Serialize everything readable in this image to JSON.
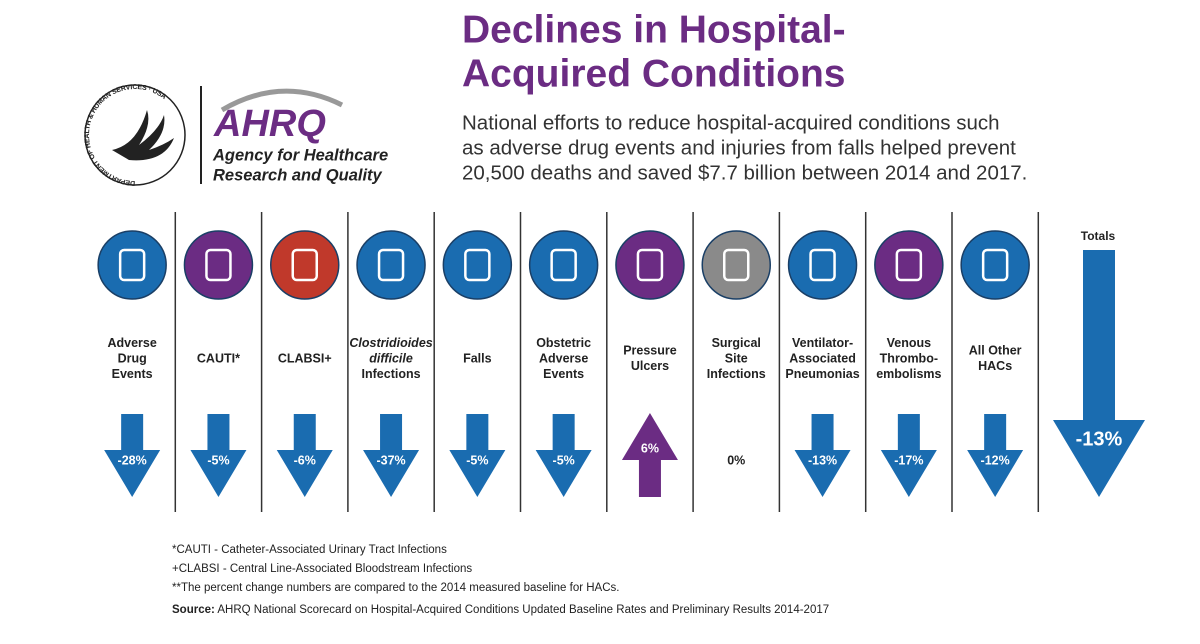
{
  "header": {
    "title_lines": [
      "Declines in Hospital-",
      "Acquired Conditions"
    ],
    "subtitle_lines": [
      "National efforts to reduce hospital-acquired conditions such",
      "as adverse drug events and injuries from falls helped prevent",
      "20,500 deaths and saved $7.7 billion between 2014 and 2017."
    ]
  },
  "logo": {
    "seal_text": "DEPARTMENT OF HEALTH & HUMAN SERVICES · USA",
    "acronym": "AHRQ",
    "name_lines": [
      "Agency for Healthcare",
      "Research and Quality"
    ]
  },
  "conditions": [
    {
      "label_lines": [
        "Adverse",
        "Drug",
        "Events"
      ],
      "change": {
        "value": -28,
        "label": "-28%"
      },
      "icon_color": "#1a6cb0"
    },
    {
      "label_lines": [
        "CAUTI*"
      ],
      "change": {
        "value": -5,
        "label": "-5%"
      },
      "icon_color": "#6b2c83"
    },
    {
      "label_lines": [
        "CLABSI+"
      ],
      "change": {
        "value": -6,
        "label": "-6%"
      },
      "icon_color": "#c0392b"
    },
    {
      "label_lines": [
        "Clostridioides",
        "difficile",
        "Infections"
      ],
      "change": {
        "value": -37,
        "label": "-37%"
      },
      "icon_color": "#1a6cb0"
    },
    {
      "label_lines": [
        "Falls"
      ],
      "change": {
        "value": -5,
        "label": "-5%"
      },
      "icon_color": "#1a6cb0"
    },
    {
      "label_lines": [
        "Obstetric",
        "Adverse",
        "Events"
      ],
      "change": {
        "value": -5,
        "label": "-5%"
      },
      "icon_color": "#1a6cb0"
    },
    {
      "label_lines": [
        "Pressure",
        "Ulcers"
      ],
      "change": {
        "value": 6,
        "label": "6%"
      },
      "icon_color": "#6b2c83"
    },
    {
      "label_lines": [
        "Surgical",
        "Site",
        "Infections"
      ],
      "change": {
        "value": 0,
        "label": "0%"
      },
      "icon_color": "#8a8a8a"
    },
    {
      "label_lines": [
        "Ventilator-",
        "Associated",
        "Pneumonias"
      ],
      "change": {
        "value": -13,
        "label": "-13%"
      },
      "icon_color": "#1a6cb0"
    },
    {
      "label_lines": [
        "Venous",
        "Thrombo-",
        "embolisms"
      ],
      "change": {
        "value": -17,
        "label": "-17%"
      },
      "icon_color": "#6b2c83"
    },
    {
      "label_lines": [
        "All Other",
        "HACs"
      ],
      "change": {
        "value": -12,
        "label": "-12%"
      },
      "icon_color": "#1a6cb0"
    }
  ],
  "totals": {
    "label": "Totals",
    "change": {
      "value": -13,
      "label": "-13%"
    }
  },
  "footnotes": [
    "*CAUTI - Catheter-Associated Urinary Tract Infections",
    "+CLABSI - Central Line-Associated Bloodstream Infections",
    "**The percent change numbers are compared to the 2014 measured baseline for HACs."
  ],
  "source": {
    "label": "Source:",
    "text": " AHRQ National Scorecard on Hospital-Acquired Conditions Updated Baseline Rates and Preliminary Results 2014-2017"
  },
  "colors": {
    "decline": "#1a6cb0",
    "increase": "#6b2c83"
  }
}
